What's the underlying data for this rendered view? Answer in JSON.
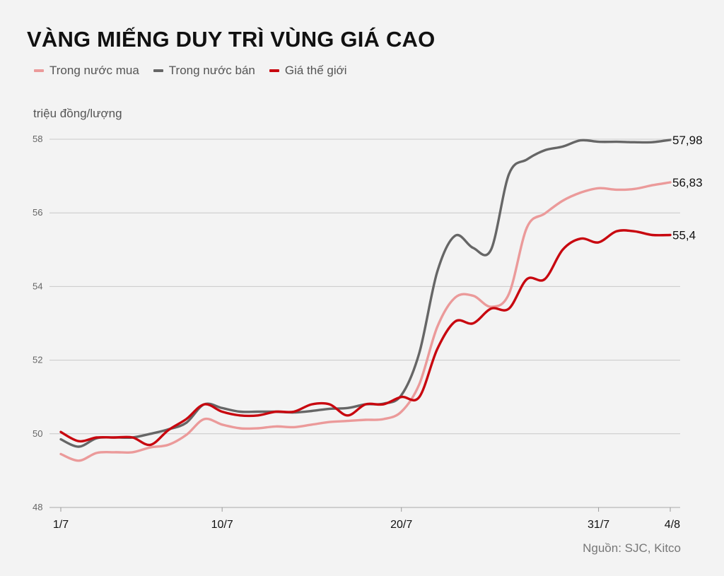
{
  "chart_data": {
    "type": "line",
    "title": "VÀNG MIẾNG DUY TRÌ VÙNG GIÁ CAO",
    "ylabel": "triệu đồng/lượng",
    "source": "Nguồn: SJC, Kitco",
    "ylim": [
      48,
      58
    ],
    "yticks": [
      48,
      50,
      52,
      54,
      56,
      58
    ],
    "grid": true,
    "legend_position": "top-left",
    "x_ticks": [
      {
        "label": "1/7",
        "day": 1
      },
      {
        "label": "10/7",
        "day": 10
      },
      {
        "label": "20/7",
        "day": 20
      },
      {
        "label": "31/7",
        "day": 31
      },
      {
        "label": "4/8",
        "day": 35
      }
    ],
    "x_range": [
      1,
      35
    ],
    "series": [
      {
        "name": "Trong nước mua",
        "color": "#eb9a9a",
        "end_label": "56,83",
        "points": [
          [
            1,
            49.45
          ],
          [
            2,
            49.27
          ],
          [
            3,
            49.48
          ],
          [
            4,
            49.5
          ],
          [
            5,
            49.5
          ],
          [
            6,
            49.63
          ],
          [
            7,
            49.7
          ],
          [
            8,
            49.97
          ],
          [
            9,
            50.4
          ],
          [
            10,
            50.25
          ],
          [
            11,
            50.15
          ],
          [
            12,
            50.15
          ],
          [
            13,
            50.2
          ],
          [
            14,
            50.18
          ],
          [
            15,
            50.25
          ],
          [
            16,
            50.32
          ],
          [
            17,
            50.35
          ],
          [
            18,
            50.38
          ],
          [
            19,
            50.4
          ],
          [
            20,
            50.6
          ],
          [
            21,
            51.35
          ],
          [
            22,
            52.9
          ],
          [
            23,
            53.7
          ],
          [
            24,
            53.75
          ],
          [
            25,
            53.45
          ],
          [
            26,
            53.8
          ],
          [
            27,
            55.6
          ],
          [
            28,
            55.98
          ],
          [
            29,
            56.33
          ],
          [
            30,
            56.55
          ],
          [
            31,
            56.67
          ],
          [
            32,
            56.63
          ],
          [
            33,
            56.65
          ],
          [
            34,
            56.75
          ],
          [
            35,
            56.83
          ]
        ]
      },
      {
        "name": "Trong nước bán",
        "color": "#666666",
        "end_label": "57,98",
        "points": [
          [
            1,
            49.85
          ],
          [
            2,
            49.65
          ],
          [
            3,
            49.88
          ],
          [
            4,
            49.9
          ],
          [
            5,
            49.9
          ],
          [
            6,
            50.0
          ],
          [
            7,
            50.12
          ],
          [
            8,
            50.3
          ],
          [
            9,
            50.8
          ],
          [
            10,
            50.7
          ],
          [
            11,
            50.6
          ],
          [
            12,
            50.6
          ],
          [
            13,
            50.6
          ],
          [
            14,
            50.58
          ],
          [
            15,
            50.62
          ],
          [
            16,
            50.68
          ],
          [
            17,
            50.7
          ],
          [
            18,
            50.8
          ],
          [
            19,
            50.82
          ],
          [
            20,
            51.05
          ],
          [
            21,
            52.2
          ],
          [
            22,
            54.4
          ],
          [
            23,
            55.38
          ],
          [
            24,
            55.05
          ],
          [
            25,
            55.0
          ],
          [
            26,
            57.05
          ],
          [
            27,
            57.45
          ],
          [
            28,
            57.7
          ],
          [
            29,
            57.8
          ],
          [
            30,
            57.97
          ],
          [
            31,
            57.93
          ],
          [
            32,
            57.93
          ],
          [
            33,
            57.92
          ],
          [
            34,
            57.92
          ],
          [
            35,
            57.98
          ]
        ]
      },
      {
        "name": "Giá thế giới",
        "color": "#c8070f",
        "end_label": "55,4",
        "points": [
          [
            1,
            50.05
          ],
          [
            2,
            49.8
          ],
          [
            3,
            49.9
          ],
          [
            4,
            49.9
          ],
          [
            5,
            49.9
          ],
          [
            6,
            49.7
          ],
          [
            7,
            50.1
          ],
          [
            8,
            50.4
          ],
          [
            9,
            50.8
          ],
          [
            10,
            50.6
          ],
          [
            11,
            50.5
          ],
          [
            12,
            50.5
          ],
          [
            13,
            50.6
          ],
          [
            14,
            50.6
          ],
          [
            15,
            50.8
          ],
          [
            16,
            50.8
          ],
          [
            17,
            50.5
          ],
          [
            18,
            50.8
          ],
          [
            19,
            50.8
          ],
          [
            20,
            51.0
          ],
          [
            21,
            51.0
          ],
          [
            22,
            52.3
          ],
          [
            23,
            53.05
          ],
          [
            24,
            53.0
          ],
          [
            25,
            53.4
          ],
          [
            26,
            53.4
          ],
          [
            27,
            54.2
          ],
          [
            28,
            54.2
          ],
          [
            29,
            55.0
          ],
          [
            30,
            55.3
          ],
          [
            31,
            55.2
          ],
          [
            32,
            55.5
          ],
          [
            33,
            55.5
          ],
          [
            34,
            55.4
          ],
          [
            35,
            55.4
          ]
        ]
      }
    ]
  }
}
